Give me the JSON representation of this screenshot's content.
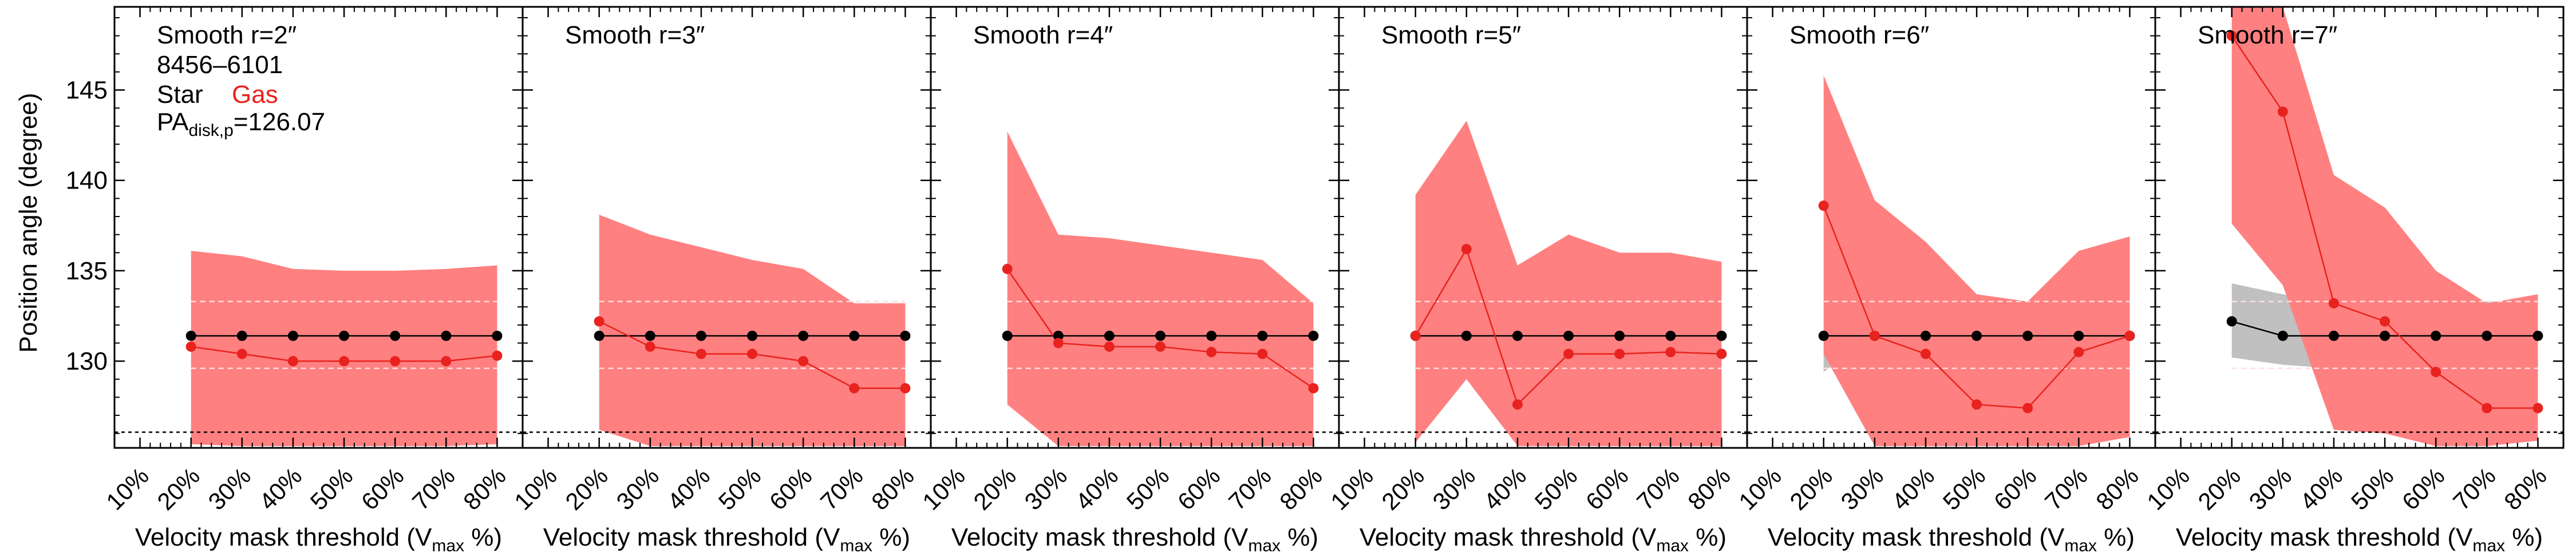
{
  "figure": {
    "ylabel": "Position angle (degree)",
    "xlabel_prefix": "Velocity mask threshold (V",
    "xlabel_sub": "max",
    "xlabel_suffix": " %)"
  },
  "legend": {
    "galaxy_id": "8456–6101",
    "star_label": "Star",
    "gas_label": "Gas",
    "pa_prefix": "PA",
    "pa_sub": "disk,p",
    "pa_value": "=126.07"
  },
  "chart_data": {
    "type": "line",
    "ylim": [
      125.2,
      149.6
    ],
    "xlim": [
      0.5,
      8.5
    ],
    "categories": [
      "10%",
      "20%",
      "30%",
      "40%",
      "50%",
      "60%",
      "70%",
      "80%"
    ],
    "yticks": [
      130,
      135,
      140,
      145
    ],
    "pa_disk_p": 126.07,
    "colors": {
      "star": "#000000",
      "gas": "#e8221f",
      "gas_band": "#ff8080",
      "star_band": "#c0c0c0",
      "dashed": "#ffdede"
    },
    "panels": [
      {
        "title": "Smooth r=2″",
        "star": {
          "x": [
            2,
            3,
            4,
            5,
            6,
            7,
            8
          ],
          "y": [
            131.4,
            131.4,
            131.4,
            131.4,
            131.4,
            131.4,
            131.4
          ]
        },
        "gas": {
          "x": [
            2,
            3,
            4,
            5,
            6,
            7,
            8
          ],
          "y": [
            130.8,
            130.4,
            130.0,
            130.0,
            130.0,
            130.0,
            130.3
          ]
        },
        "gas_upper": [
          136.1,
          135.8,
          135.1,
          135.0,
          135.0,
          135.1,
          135.3
        ],
        "gas_lower": [
          125.4,
          125.3,
          125.3,
          125.3,
          125.3,
          125.3,
          125.4
        ],
        "star_band": [
          133.3,
          129.6
        ]
      },
      {
        "title": "Smooth r=3″",
        "star": {
          "x": [
            2,
            3,
            4,
            5,
            6,
            7,
            8
          ],
          "y": [
            131.4,
            131.4,
            131.4,
            131.4,
            131.4,
            131.4,
            131.4
          ]
        },
        "gas": {
          "x": [
            2,
            3,
            4,
            5,
            6,
            7,
            8
          ],
          "y": [
            132.2,
            130.8,
            130.4,
            130.4,
            130.0,
            128.5,
            128.5
          ]
        },
        "gas_upper": [
          138.1,
          137.0,
          136.3,
          135.6,
          135.1,
          133.2,
          133.2
        ],
        "gas_lower": [
          126.2,
          125.3,
          125.3,
          125.3,
          125.3,
          125.3,
          125.3
        ],
        "star_band": [
          133.3,
          129.6
        ]
      },
      {
        "title": "Smooth r=4″",
        "star": {
          "x": [
            2,
            3,
            4,
            5,
            6,
            7,
            8
          ],
          "y": [
            131.4,
            131.4,
            131.4,
            131.4,
            131.4,
            131.4,
            131.4
          ]
        },
        "gas": {
          "x": [
            2,
            3,
            4,
            5,
            6,
            7,
            8
          ],
          "y": [
            135.1,
            131.0,
            130.8,
            130.8,
            130.5,
            130.4,
            128.5
          ]
        },
        "gas_upper": [
          142.7,
          137.0,
          136.8,
          136.4,
          136.0,
          135.6,
          133.2
        ],
        "gas_lower": [
          127.6,
          125.3,
          125.3,
          125.3,
          125.3,
          125.3,
          125.3
        ],
        "star_band": [
          133.3,
          129.6
        ]
      },
      {
        "title": "Smooth r=5″",
        "star": {
          "x": [
            2,
            3,
            4,
            5,
            6,
            7,
            8
          ],
          "y": [
            131.4,
            131.4,
            131.4,
            131.4,
            131.4,
            131.4,
            131.4
          ]
        },
        "gas": {
          "x": [
            2,
            3,
            4,
            5,
            6,
            7,
            8
          ],
          "y": [
            131.4,
            136.2,
            127.6,
            130.4,
            130.4,
            130.5,
            130.4
          ]
        },
        "gas_upper": [
          139.2,
          143.3,
          135.3,
          137.0,
          136.0,
          136.0,
          135.5
        ],
        "gas_lower": [
          125.5,
          129.0,
          125.3,
          125.3,
          125.3,
          125.3,
          125.3
        ],
        "star_band": [
          133.3,
          129.6
        ]
      },
      {
        "title": "Smooth r=6″",
        "star": {
          "x": [
            2,
            3,
            4,
            5,
            6,
            7,
            8
          ],
          "y": [
            131.4,
            131.4,
            131.4,
            131.4,
            131.4,
            131.4,
            131.4
          ]
        },
        "gas": {
          "x": [
            2,
            3,
            4,
            5,
            6,
            7,
            8
          ],
          "y": [
            138.6,
            131.4,
            130.4,
            127.6,
            127.4,
            130.5,
            131.4
          ]
        },
        "gas_upper": [
          145.8,
          138.9,
          136.6,
          133.7,
          133.3,
          136.1,
          136.9
        ],
        "gas_lower": [
          130.4,
          125.3,
          125.3,
          125.3,
          125.3,
          125.3,
          125.8
        ],
        "star_band": [
          133.3,
          129.6
        ],
        "star_band_grey": [
          [
            2,
            131.4,
            129.4
          ],
          [
            3,
            131.4,
            131.4
          ]
        ]
      },
      {
        "title": "Smooth r=7″",
        "star": {
          "x": [
            2,
            3,
            4,
            5,
            6,
            7,
            8
          ],
          "y": [
            132.2,
            131.4,
            131.4,
            131.4,
            131.4,
            131.4,
            131.4
          ]
        },
        "gas": {
          "x": [
            2,
            3,
            4,
            5,
            6,
            7,
            8
          ],
          "y": [
            148.0,
            143.8,
            133.2,
            132.2,
            129.4,
            127.4,
            127.4
          ]
        },
        "gas_upper": [
          149.6,
          149.6,
          140.3,
          138.5,
          135.0,
          133.2,
          133.7
        ],
        "gas_lower": [
          137.6,
          134.2,
          126.2,
          126.0,
          125.3,
          125.3,
          125.6
        ],
        "star_band": [
          133.3,
          129.6
        ],
        "star_band_grey": [
          [
            2,
            134.3,
            130.2
          ],
          [
            3,
            133.7,
            129.8
          ],
          [
            4,
            133.3,
            129.6
          ],
          [
            5,
            133.3,
            129.6
          ],
          [
            6,
            133.3,
            129.6
          ],
          [
            7,
            133.3,
            129.6
          ],
          [
            8,
            133.3,
            129.6
          ]
        ]
      }
    ]
  }
}
